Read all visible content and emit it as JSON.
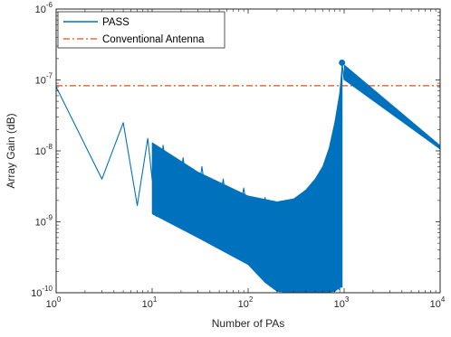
{
  "chart_data": {
    "type": "line",
    "x_scale": "log",
    "y_scale": "log",
    "xlabel": "Number of PAs",
    "ylabel": "Array Gain (dB)",
    "xlim": [
      1,
      10000
    ],
    "ylim": [
      1e-10,
      1e-06
    ],
    "x_ticks": [
      {
        "value": 1,
        "base": "10",
        "exp": "0"
      },
      {
        "value": 10,
        "base": "10",
        "exp": "1"
      },
      {
        "value": 100,
        "base": "10",
        "exp": "2"
      },
      {
        "value": 1000,
        "base": "10",
        "exp": "3"
      },
      {
        "value": 10000,
        "base": "10",
        "exp": "4"
      }
    ],
    "y_ticks": [
      {
        "value": 1e-10,
        "base": "10",
        "exp": "-10"
      },
      {
        "value": 1e-09,
        "base": "10",
        "exp": "-9"
      },
      {
        "value": 1e-08,
        "base": "10",
        "exp": "-8"
      },
      {
        "value": 1e-07,
        "base": "10",
        "exp": "-7"
      },
      {
        "value": 1e-06,
        "base": "10",
        "exp": "-6"
      }
    ],
    "grid": false,
    "legend_position": "top-left",
    "series": [
      {
        "name": "PASS",
        "color": "#0072BD",
        "style": "solid",
        "oscillating_points": [
          [
            1,
            8e-08
          ],
          [
            3,
            4e-09
          ],
          [
            5,
            2.5e-08
          ],
          [
            7,
            1.7e-09
          ],
          [
            9,
            1.5e-08
          ],
          [
            11,
            1.2e-09
          ],
          [
            13,
            1.2e-08
          ],
          [
            17,
            9e-10
          ],
          [
            21,
            8e-09
          ],
          [
            27,
            7e-10
          ],
          [
            33,
            6e-09
          ],
          [
            43,
            5e-10
          ],
          [
            55,
            4e-09
          ],
          [
            70,
            3.8e-10
          ],
          [
            90,
            3e-09
          ],
          [
            115,
            3e-10
          ],
          [
            150,
            2.2e-09
          ],
          [
            190,
            2.2e-10
          ],
          [
            240,
            2e-09
          ],
          [
            300,
            1.8e-10
          ],
          [
            400,
            2.5e-09
          ],
          [
            500,
            1.2e-10
          ],
          [
            600,
            4e-09
          ],
          [
            700,
            1e-10
          ],
          [
            800,
            1.5e-08
          ],
          [
            900,
            1.1e-10
          ]
        ],
        "envelope_upper": [
          [
            1,
            8e-08
          ],
          [
            5,
            2.5e-08
          ],
          [
            10,
            1.3e-08
          ],
          [
            30,
            5e-09
          ],
          [
            100,
            2.3e-09
          ],
          [
            200,
            1.9e-09
          ],
          [
            300,
            2.1e-09
          ],
          [
            400,
            2.8e-09
          ],
          [
            500,
            4e-09
          ],
          [
            600,
            6e-09
          ],
          [
            700,
            1.1e-08
          ],
          [
            800,
            2.5e-08
          ],
          [
            900,
            6.5e-08
          ],
          [
            950,
            1.5e-07
          ]
        ],
        "envelope_lower": [
          [
            10,
            1.3e-09
          ],
          [
            30,
            6e-10
          ],
          [
            100,
            2.5e-10
          ],
          [
            150,
            1.4e-10
          ],
          [
            200,
            1.05e-10
          ],
          [
            300,
            1e-10
          ],
          [
            600,
            1e-10
          ],
          [
            800,
            1.05e-10
          ],
          [
            900,
            1.2e-10
          ]
        ],
        "peak": [
          950,
          1.75e-07
        ],
        "decay_upper": [
          [
            950,
            1.75e-07
          ],
          [
            10000,
            1.2e-08
          ]
        ],
        "decay_lower": [
          [
            1000,
            1e-07
          ],
          [
            10000,
            1.05e-08
          ]
        ]
      },
      {
        "name": "Conventional Antenna",
        "color": "#D95319",
        "style": "dashdot",
        "points": [
          [
            1,
            8.3e-08
          ],
          [
            10000,
            8.3e-08
          ]
        ]
      }
    ]
  }
}
